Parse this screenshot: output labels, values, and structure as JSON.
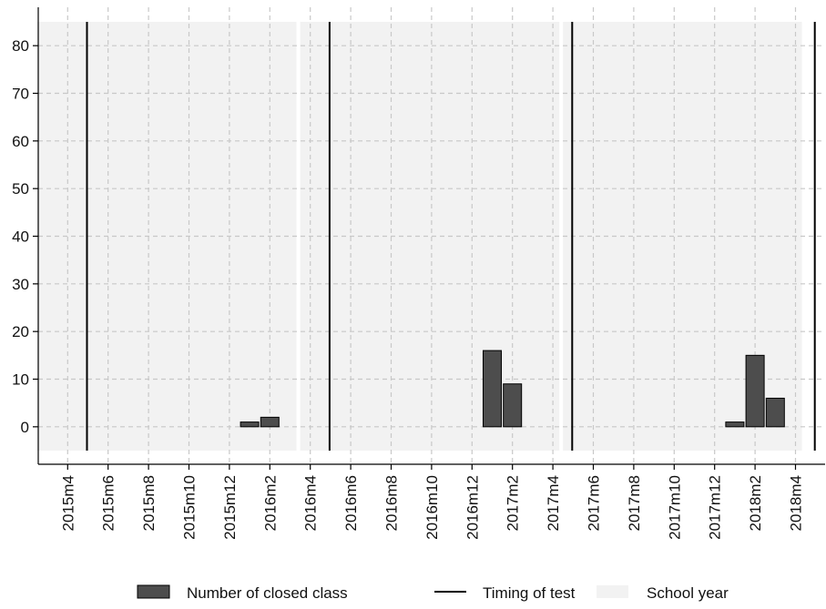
{
  "chart_data": {
    "type": "bar",
    "title": "",
    "xlabel": "",
    "ylabel": "",
    "ylim": [
      -5,
      85
    ],
    "y_ticks": [
      0,
      10,
      20,
      30,
      40,
      50,
      60,
      70,
      80
    ],
    "x_range": [
      "2015m3",
      "2018m5"
    ],
    "x_tick_labels": [
      "2015m4",
      "2015m6",
      "2015m8",
      "2015m10",
      "2015m12",
      "2016m2",
      "2016m4",
      "2016m6",
      "2016m8",
      "2016m10",
      "2016m12",
      "2017m2",
      "2017m4",
      "2017m6",
      "2017m8",
      "2017m10",
      "2017m12",
      "2018m2",
      "2018m4"
    ],
    "grid": true,
    "legend_position": "bottom",
    "series": [
      {
        "name": "Number of closed class",
        "kind": "bar",
        "color": "#4d4d4d",
        "points": [
          {
            "x": "2016m1",
            "y": 1
          },
          {
            "x": "2016m2",
            "y": 2
          },
          {
            "x": "2017m1",
            "y": 16
          },
          {
            "x": "2017m2",
            "y": 9
          },
          {
            "x": "2018m1",
            "y": 1
          },
          {
            "x": "2018m2",
            "y": 15
          },
          {
            "x": "2018m3",
            "y": 6
          }
        ]
      },
      {
        "name": "Timing of test",
        "kind": "vline",
        "color": "#000000",
        "x": [
          "2015m5",
          "2016m5",
          "2017m5",
          "2018m5"
        ]
      },
      {
        "name": "School year",
        "kind": "band",
        "color": "#f2f2f2",
        "ranges": [
          [
            "2015m3",
            "2016m3"
          ],
          [
            "2016m4",
            "2017m4"
          ],
          [
            "2017m5",
            "2018m4"
          ]
        ]
      }
    ]
  }
}
